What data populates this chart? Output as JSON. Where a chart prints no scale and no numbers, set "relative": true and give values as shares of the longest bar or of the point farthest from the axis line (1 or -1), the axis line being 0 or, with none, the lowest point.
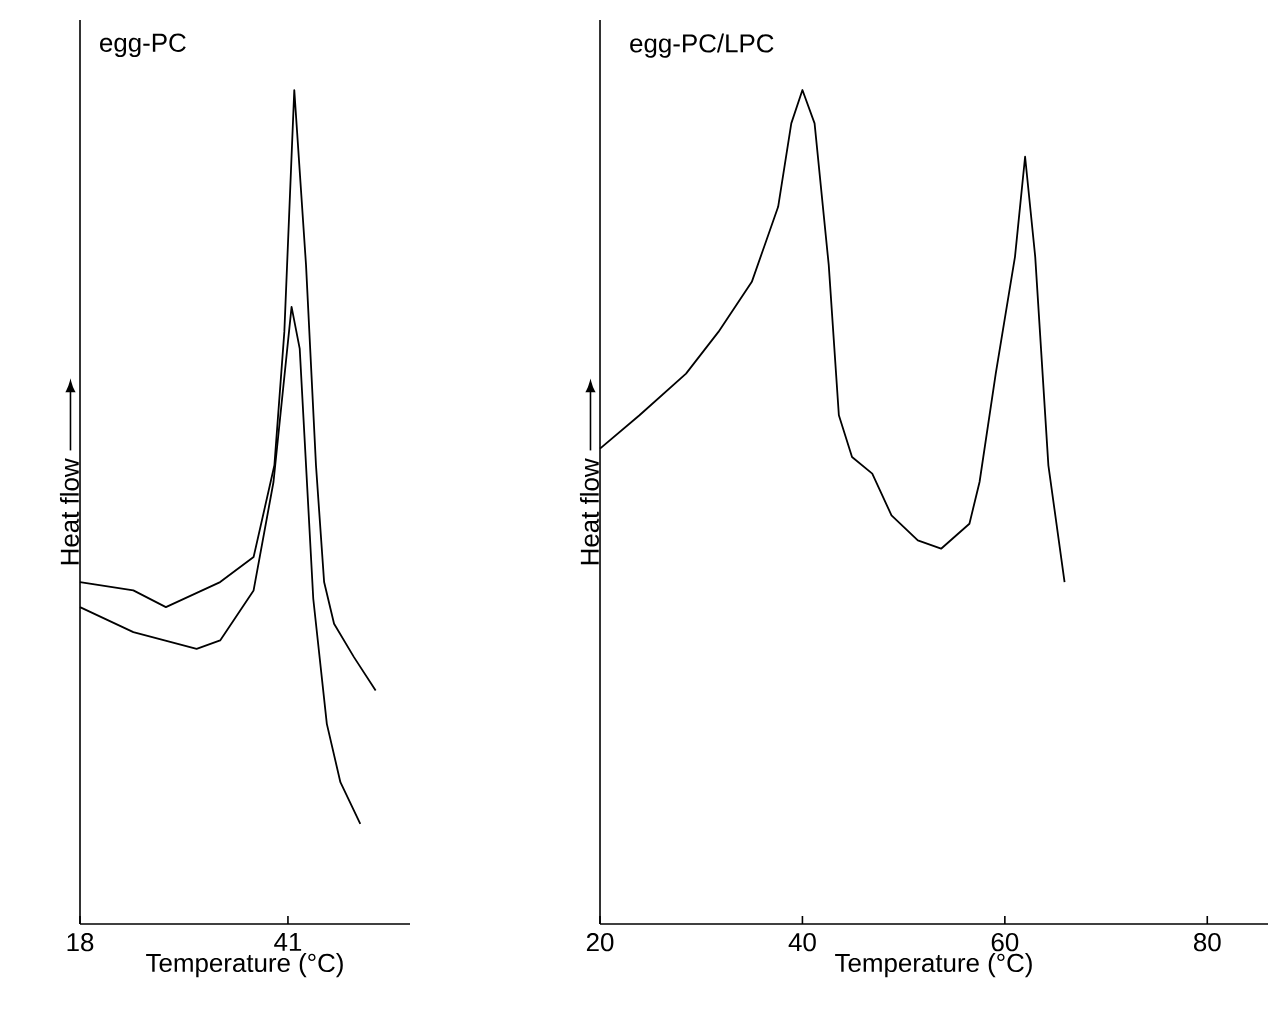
{
  "chart_data": [
    {
      "type": "line",
      "title": "egg-PC",
      "xlabel": "Temperature (°C)",
      "ylabel": "Heat flow",
      "relative": true,
      "xlim": [
        18,
        54.5
      ],
      "xticks": [
        18,
        41
      ],
      "marker": "none",
      "line_style": "solid",
      "series": [
        {
          "color": "#000000",
          "x": [
            18.0,
            23.9,
            27.5,
            33.5,
            37.2,
            39.5,
            40.6,
            41.7,
            43.0,
            44.1,
            45.0,
            46.1,
            48.3,
            50.7
          ],
          "values": [
            0.41,
            0.4,
            0.38,
            0.41,
            0.44,
            0.55,
            0.71,
            1.0,
            0.79,
            0.55,
            0.41,
            0.36,
            0.32,
            0.28
          ]
        },
        {
          "color": "#000000",
          "x": [
            18.0,
            23.9,
            30.9,
            33.5,
            37.2,
            39.4,
            41.4,
            42.3,
            43.8,
            45.3,
            46.8,
            49.0
          ],
          "values": [
            0.38,
            0.35,
            0.33,
            0.34,
            0.4,
            0.53,
            0.74,
            0.69,
            0.39,
            0.24,
            0.17,
            0.12
          ]
        }
      ]
    },
    {
      "type": "line",
      "title": "egg-PC/LPC",
      "xlabel": "Temperature (°C)",
      "ylabel": "Heat flow",
      "relative": true,
      "xlim": [
        20,
        86
      ],
      "xticks": [
        20,
        40,
        60,
        80
      ],
      "marker": "none",
      "line_style": "solid",
      "series": [
        {
          "color": "#000000",
          "x": [
            20.0,
            23.9,
            28.5,
            31.7,
            35.0,
            37.6,
            38.9,
            40.0,
            41.2,
            42.6,
            43.6,
            44.9,
            46.9,
            48.8,
            51.4,
            53.7,
            56.5,
            57.5,
            59.1,
            61.0,
            62.0,
            63.0,
            64.3,
            65.9
          ],
          "values": [
            0.57,
            0.61,
            0.66,
            0.71,
            0.77,
            0.86,
            0.96,
            1.0,
            0.96,
            0.79,
            0.61,
            0.56,
            0.54,
            0.49,
            0.46,
            0.45,
            0.48,
            0.53,
            0.66,
            0.8,
            0.92,
            0.8,
            0.55,
            0.41
          ]
        }
      ]
    }
  ]
}
